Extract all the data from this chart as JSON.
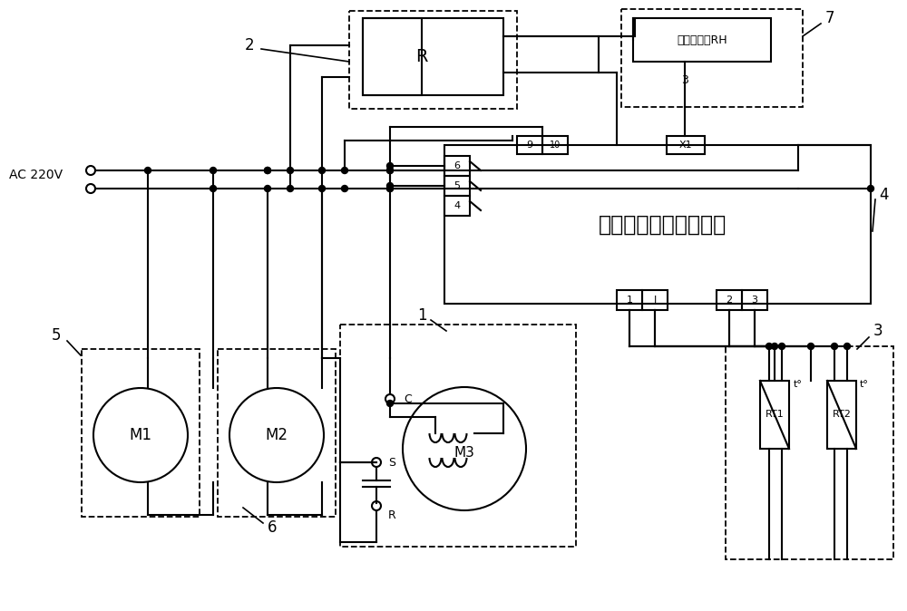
{
  "bg": "#ffffff",
  "figw": 10.0,
  "figh": 6.74,
  "dpi": 100,
  "ctrl_label": "微电脑温度湿度控制器",
  "humid_label": "湿度传感器RH",
  "notes": {
    "layout": "AC220V at left ~y=195,215. Two horizontal power lines extend right. Controller box from ~x=490 to x=960, y=160 to y=335. Relay box (2) top center ~x=390-560, y=12-115. Humidity sensor (7) top right ~x=685-900, y=10-115. M3 capacitor motor box center bottom ~x=370-620, y=360-600. M1/M2 left bottom ~x=65-370, y=375-600. RT1/RT2 right bottom ~x=790-975, y=380-605."
  }
}
